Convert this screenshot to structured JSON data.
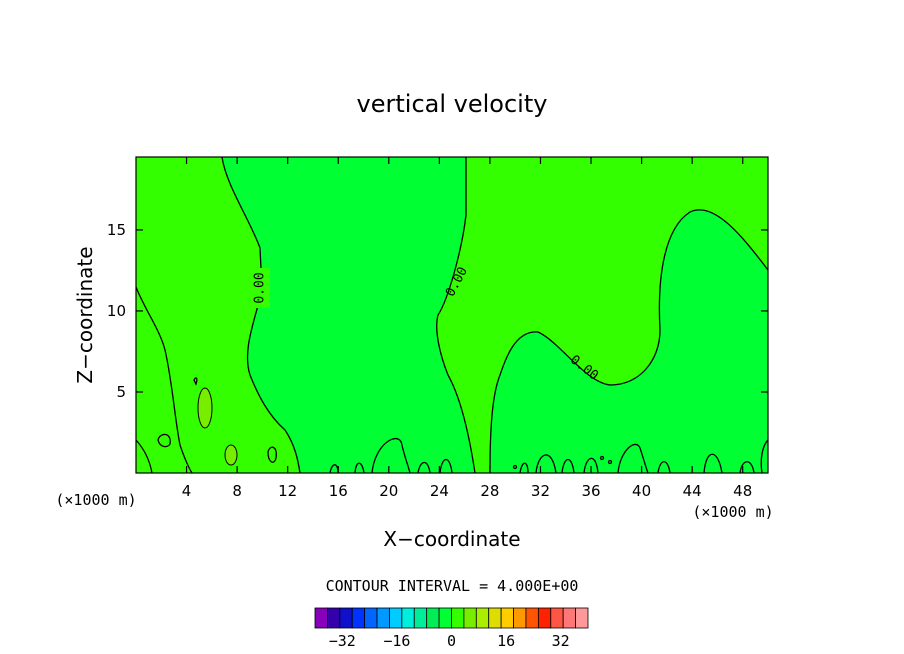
{
  "chart_data": {
    "type": "heatmap",
    "title": "vertical velocity",
    "xlabel": "X−coordinate",
    "ylabel": "Z−coordinate",
    "x_unit_left": "(×1000 m)",
    "x_unit_right": "(×1000 m)",
    "xlim": [
      0,
      50
    ],
    "ylim": [
      0,
      19.5
    ],
    "x_ticks": [
      "4",
      "8",
      "12",
      "16",
      "20",
      "24",
      "28",
      "32",
      "36",
      "40",
      "44",
      "48"
    ],
    "x_tick_values": [
      4,
      8,
      12,
      16,
      20,
      24,
      28,
      32,
      36,
      40,
      44,
      48
    ],
    "y_ticks": [
      "5",
      "10",
      "15"
    ],
    "y_tick_values": [
      5,
      10,
      15
    ],
    "contour_labels": [
      "0.00",
      "0.00",
      "0.00"
    ],
    "contour_interval_text": "CONTOUR INTERVAL = 4.000E+00",
    "colorbar": {
      "min": -40,
      "max": 40,
      "step": 4,
      "tick_labels": [
        "−32",
        "−16",
        "0",
        "16",
        "32"
      ],
      "tick_values": [
        -32,
        -16,
        0,
        16,
        32
      ],
      "colors": [
        "#8800bb",
        "#3300aa",
        "#1010cc",
        "#0033ff",
        "#0066ff",
        "#0099ff",
        "#00ccff",
        "#00eedd",
        "#00ee99",
        "#00ee55",
        "#00ff33",
        "#33ff00",
        "#77ee00",
        "#aaee00",
        "#dddd00",
        "#ffcc00",
        "#ff9900",
        "#ff5500",
        "#ff2200",
        "#ff5544",
        "#ff7777",
        "#ff9999"
      ]
    },
    "fill_colors": {
      "negative_band": "#00ff33",
      "positive_band": "#33ff00",
      "weak_positive": "#77ee00"
    }
  }
}
